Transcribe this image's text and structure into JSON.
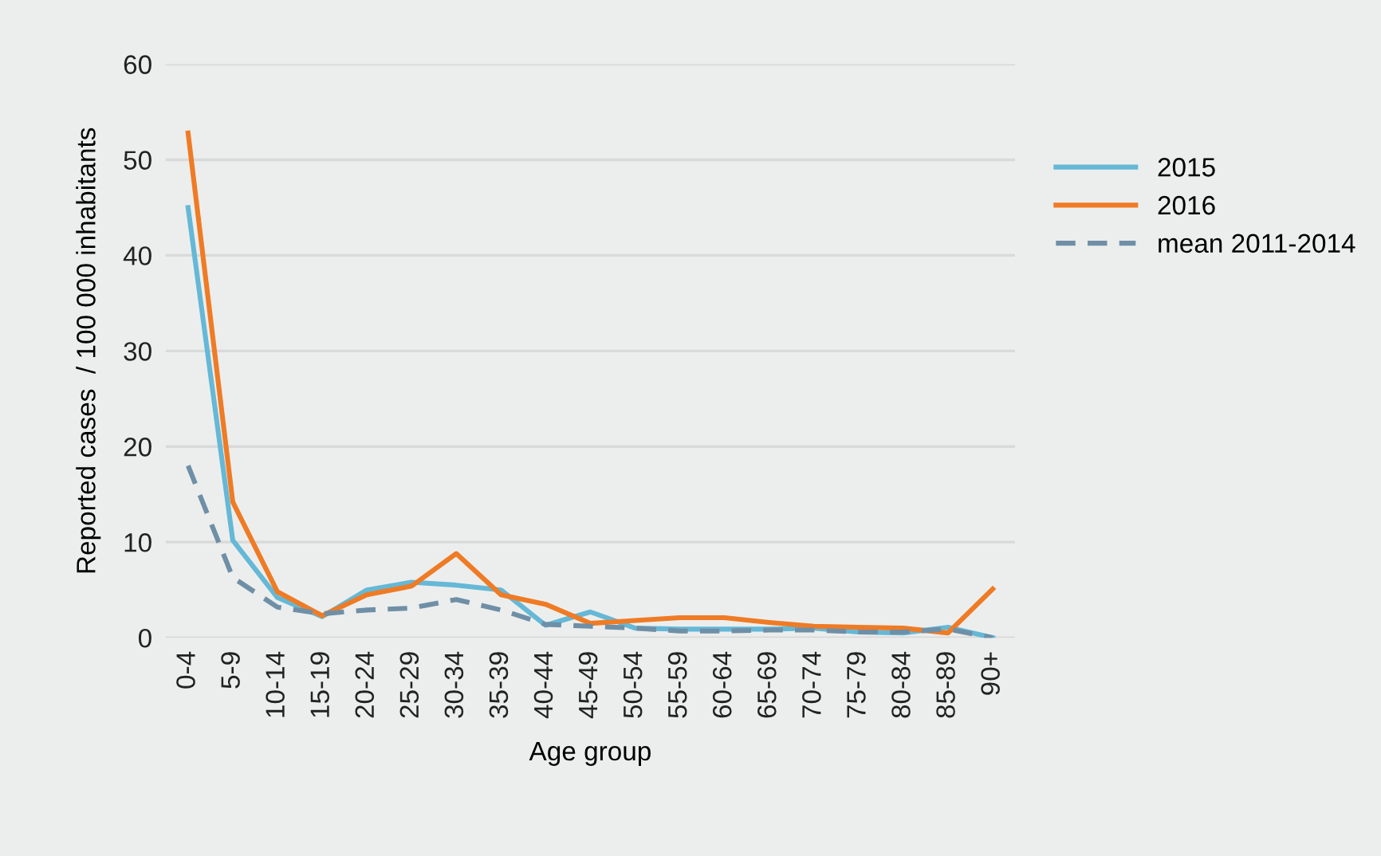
{
  "chart_data": {
    "type": "line",
    "xlabel": "Age group",
    "ylabel": "Reported cases  / 100 000 inhabitants",
    "categories": [
      "0-4",
      "5-9",
      "10-14",
      "15-19",
      "20-24",
      "25-29",
      "30-34",
      "35-39",
      "40-44",
      "45-49",
      "50-54",
      "55-59",
      "60-64",
      "65-69",
      "70-74",
      "75-79",
      "80-84",
      "85-89",
      "90+"
    ],
    "series": [
      {
        "name": "2015",
        "color": "#65b8d6",
        "line_style": "solid",
        "values": [
          45,
          10.2,
          4.2,
          2.2,
          5.0,
          5.8,
          5.5,
          5.0,
          1.3,
          2.7,
          1.0,
          0.9,
          0.9,
          0.9,
          1.0,
          0.6,
          0.5,
          1.1,
          0
        ]
      },
      {
        "name": "2016",
        "color": "#ef7b25",
        "line_style": "solid",
        "values": [
          52.8,
          14.2,
          4.8,
          2.3,
          4.5,
          5.4,
          8.8,
          4.5,
          3.5,
          1.5,
          1.8,
          2.1,
          2.1,
          1.6,
          1.2,
          1.1,
          1.0,
          0.5,
          5.1
        ]
      },
      {
        "name": "mean 2011-2014",
        "color": "#6f8fa6",
        "line_style": "dashed",
        "values": [
          18,
          6.3,
          3.2,
          2.5,
          2.9,
          3.1,
          4.0,
          2.9,
          1.4,
          1.2,
          1.0,
          0.7,
          0.7,
          0.8,
          0.8,
          0.6,
          0.6,
          0.9,
          0
        ]
      }
    ],
    "ylim": [
      0,
      60
    ],
    "yticks": [
      0,
      10,
      20,
      30,
      40,
      50,
      60
    ],
    "grid": "y",
    "legend": "right",
    "marker": "none"
  }
}
